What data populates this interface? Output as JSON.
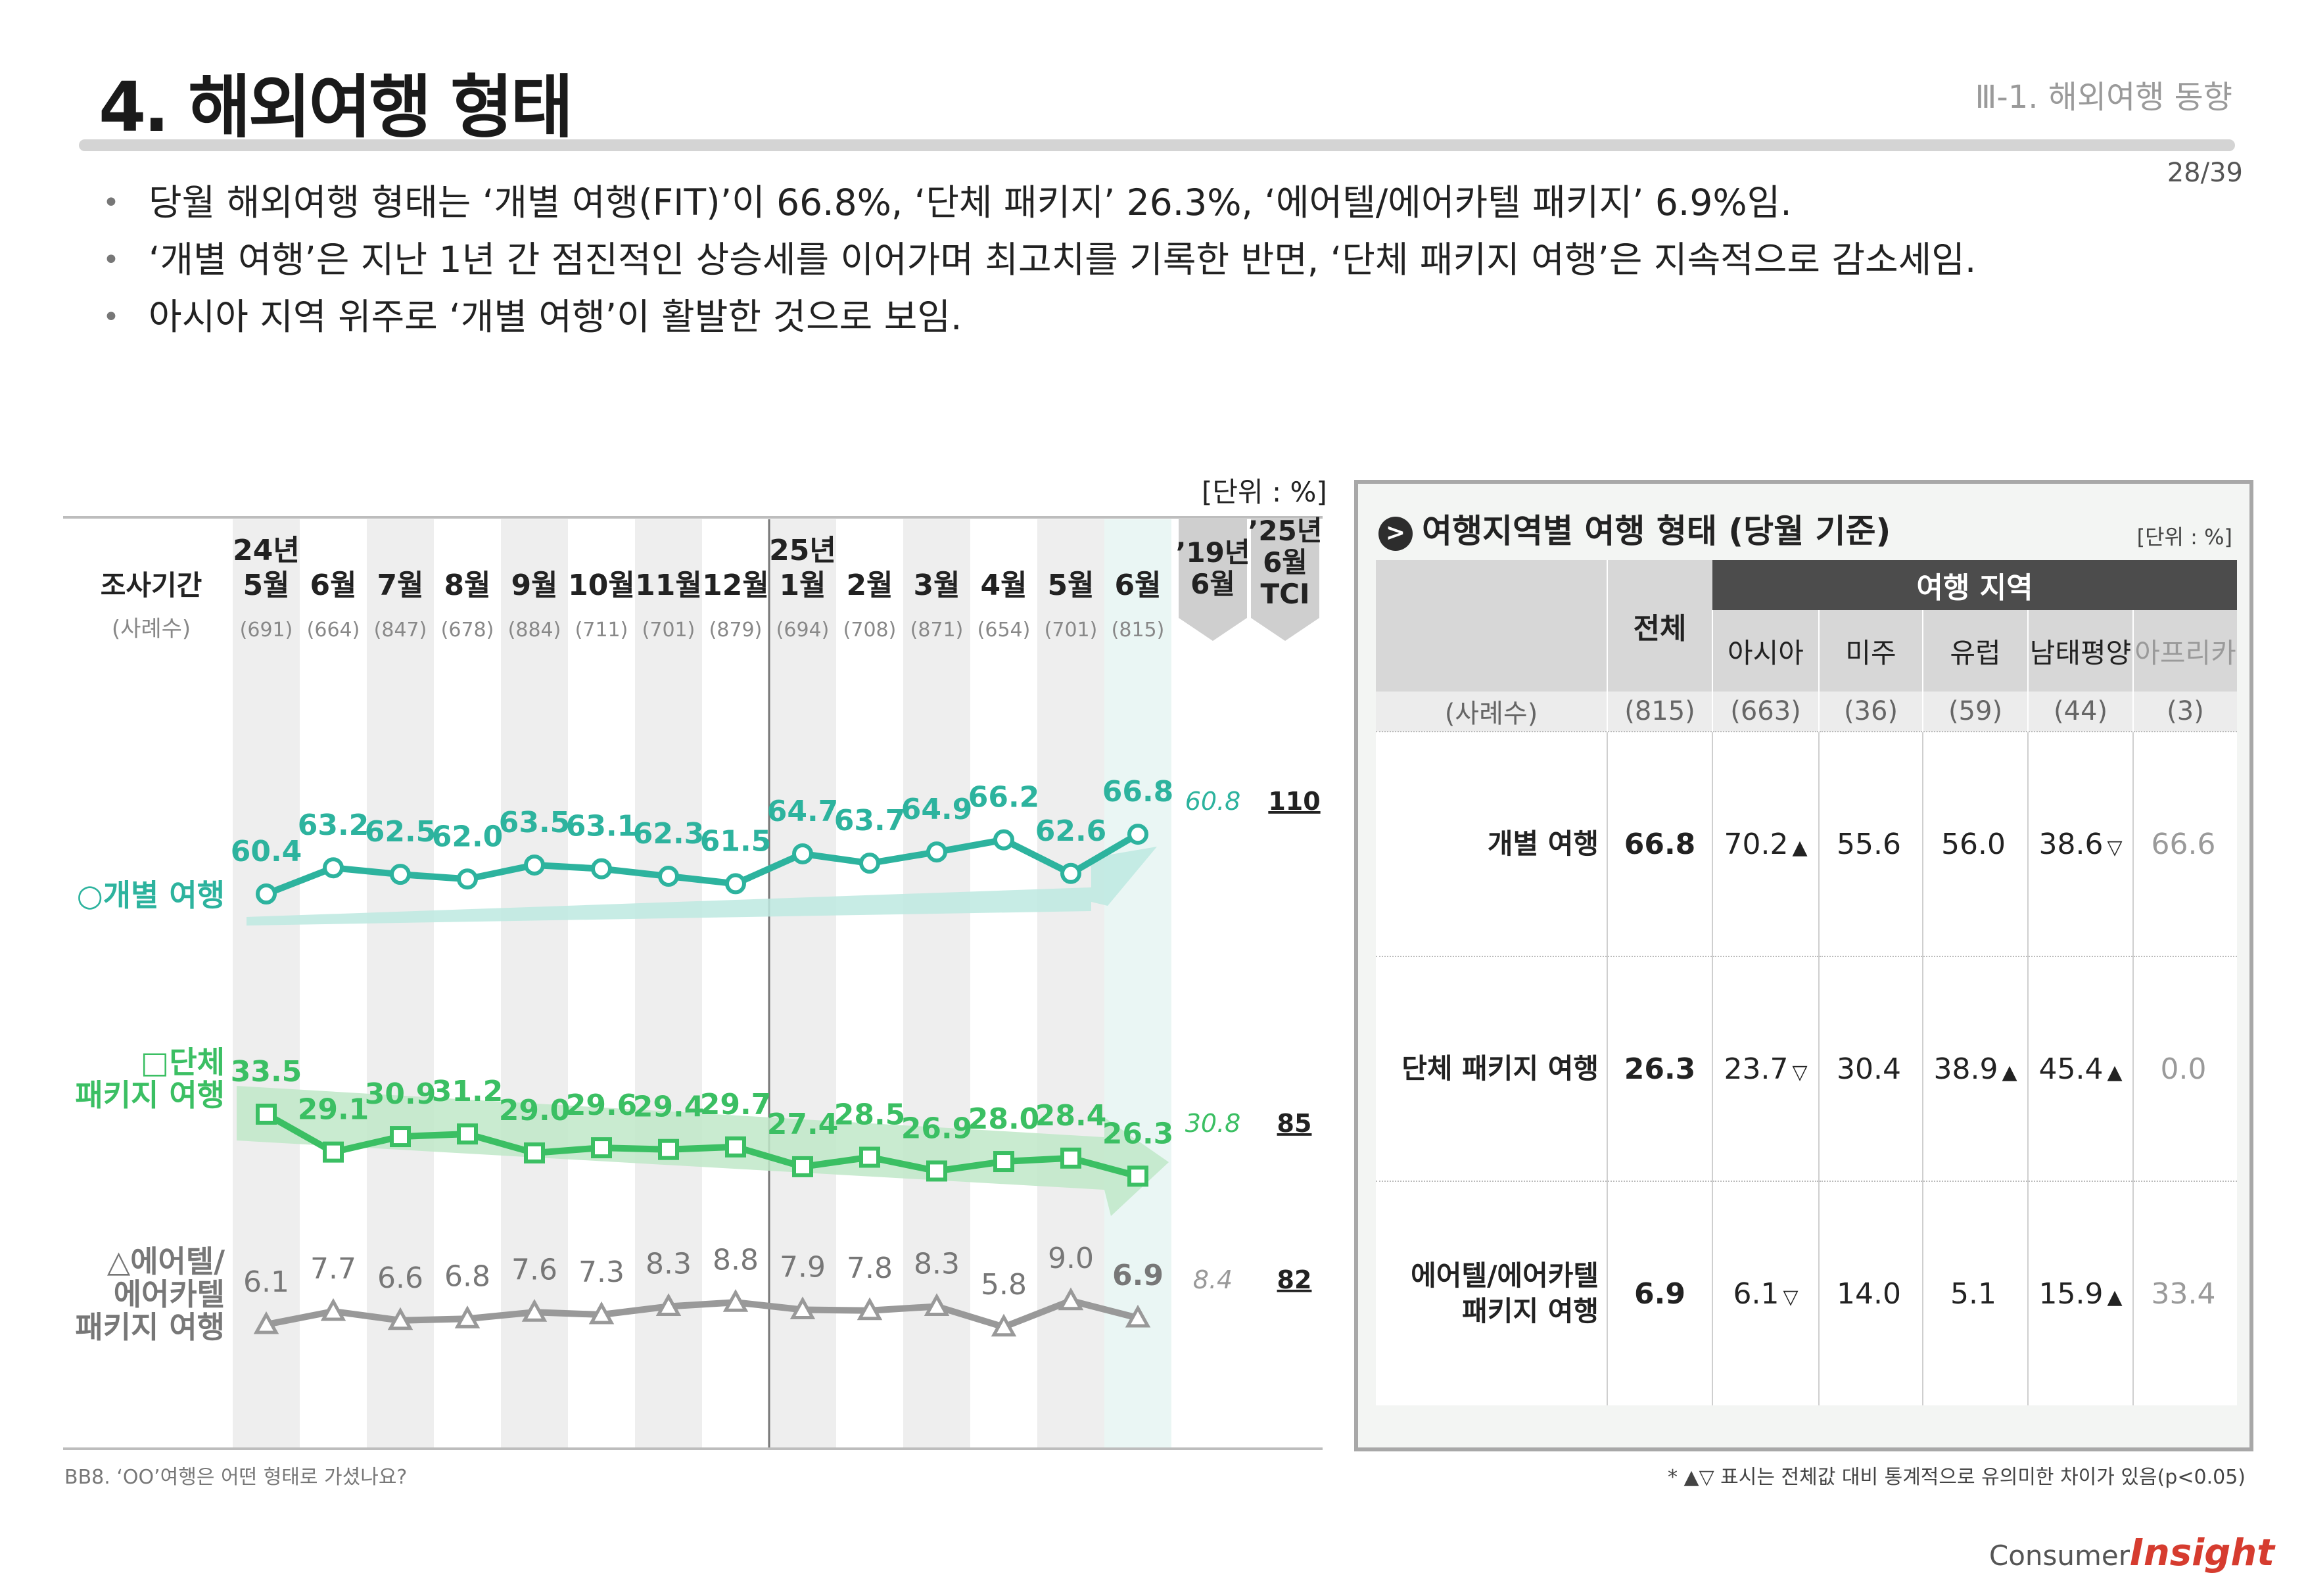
{
  "header": {
    "title": "4. 해외여행 형태",
    "section": "Ⅲ-1. 해외여행 동향",
    "page": "28/39"
  },
  "bullets": [
    "당월 해외여행 형태는 ‘개별 여행(FIT)’이 66.8%, ‘단체 패키지’ 26.3%, ‘에어텔/에어카텔 패키지’ 6.9%임.",
    "‘개별 여행’은 지난 1년 간 점진적인 상승세를 이어가며 최고치를 기록한 반면, ‘단체 패키지 여행’은 지속적으로 감소세임.",
    "아시아 지역 위주로 ‘개별 여행’이 활발한 것으로 보임."
  ],
  "chart_data": {
    "type": "line",
    "unit": "[단위 : %]",
    "header_labels": {
      "period": "조사기간",
      "sample": "(사례수)"
    },
    "year_labels": [
      "24년",
      "25년"
    ],
    "months": [
      "5월",
      "6월",
      "7월",
      "8월",
      "9월",
      "10월",
      "11월",
      "12월",
      "1월",
      "2월",
      "3월",
      "4월",
      "5월",
      "6월"
    ],
    "sample_sizes": [
      "(691)",
      "(664)",
      "(847)",
      "(678)",
      "(884)",
      "(711)",
      "(701)",
      "(879)",
      "(694)",
      "(708)",
      "(871)",
      "(654)",
      "(701)",
      "(815)"
    ],
    "compare_headers": [
      "’19년\n6월",
      "’25년\n6월\nTCI"
    ],
    "series": [
      {
        "name": "○개별 여행",
        "marker": "circle",
        "color": "#2db39e",
        "values": [
          60.4,
          63.2,
          62.5,
          62.0,
          63.5,
          63.1,
          62.3,
          61.5,
          64.7,
          63.7,
          64.9,
          66.2,
          62.6,
          66.8
        ],
        "y2019": "60.8",
        "tci": "110"
      },
      {
        "name": "□단체\n패키지 여행",
        "marker": "square",
        "color": "#3bbf63",
        "values": [
          33.5,
          29.1,
          30.9,
          31.2,
          29.0,
          29.6,
          29.4,
          29.7,
          27.4,
          28.5,
          26.9,
          28.0,
          28.4,
          26.3
        ],
        "y2019": "30.8",
        "tci": "85"
      },
      {
        "name": "△에어텔/\n에어카텔\n패키지 여행",
        "marker": "triangle",
        "color": "#999999",
        "values": [
          6.1,
          7.7,
          6.6,
          6.8,
          7.6,
          7.3,
          8.3,
          8.8,
          7.9,
          7.8,
          8.3,
          5.8,
          9.0,
          6.9
        ],
        "y2019": "8.4",
        "tci": "82"
      }
    ],
    "trend_arrows": [
      "up",
      "down"
    ],
    "footnote": "BB8. ‘OO’여행은 어떤 형태로 가셨나요?"
  },
  "region_table": {
    "title": "여행지역별 여행 형태 (당월 기준)",
    "unit": "[단위 : %]",
    "group_header": "여행 지역",
    "total_header": "전체",
    "columns": [
      "아시아",
      "미주",
      "유럽",
      "남태평양",
      "아프리카"
    ],
    "sample_label": "(사례수)",
    "samples": [
      "(815)",
      "(663)",
      "(36)",
      "(59)",
      "(44)",
      "(3)"
    ],
    "rows": [
      {
        "label": "개별 여행",
        "total": "66.8",
        "cells": [
          {
            "v": "70.2",
            "m": "▲"
          },
          {
            "v": "55.6",
            "m": ""
          },
          {
            "v": "56.0",
            "m": ""
          },
          {
            "v": "38.6",
            "m": "▽"
          },
          {
            "v": "66.6",
            "m": ""
          }
        ]
      },
      {
        "label": "단체 패키지 여행",
        "total": "26.3",
        "cells": [
          {
            "v": "23.7",
            "m": "▽"
          },
          {
            "v": "30.4",
            "m": ""
          },
          {
            "v": "38.9",
            "m": "▲"
          },
          {
            "v": "45.4",
            "m": "▲"
          },
          {
            "v": "0.0",
            "m": ""
          }
        ]
      },
      {
        "label": "에어텔/에어카텔\n패키지 여행",
        "total": "6.9",
        "cells": [
          {
            "v": "6.1",
            "m": "▽"
          },
          {
            "v": "14.0",
            "m": ""
          },
          {
            "v": "5.1",
            "m": ""
          },
          {
            "v": "15.9",
            "m": "▲"
          },
          {
            "v": "33.4",
            "m": ""
          }
        ]
      }
    ],
    "footnote": "* ▲▽ 표시는 전체값 대비 통계적으로 유의미한 차이가 있음(p<0.05)"
  },
  "brand": {
    "c": "Consumer",
    "i": "Insight"
  }
}
